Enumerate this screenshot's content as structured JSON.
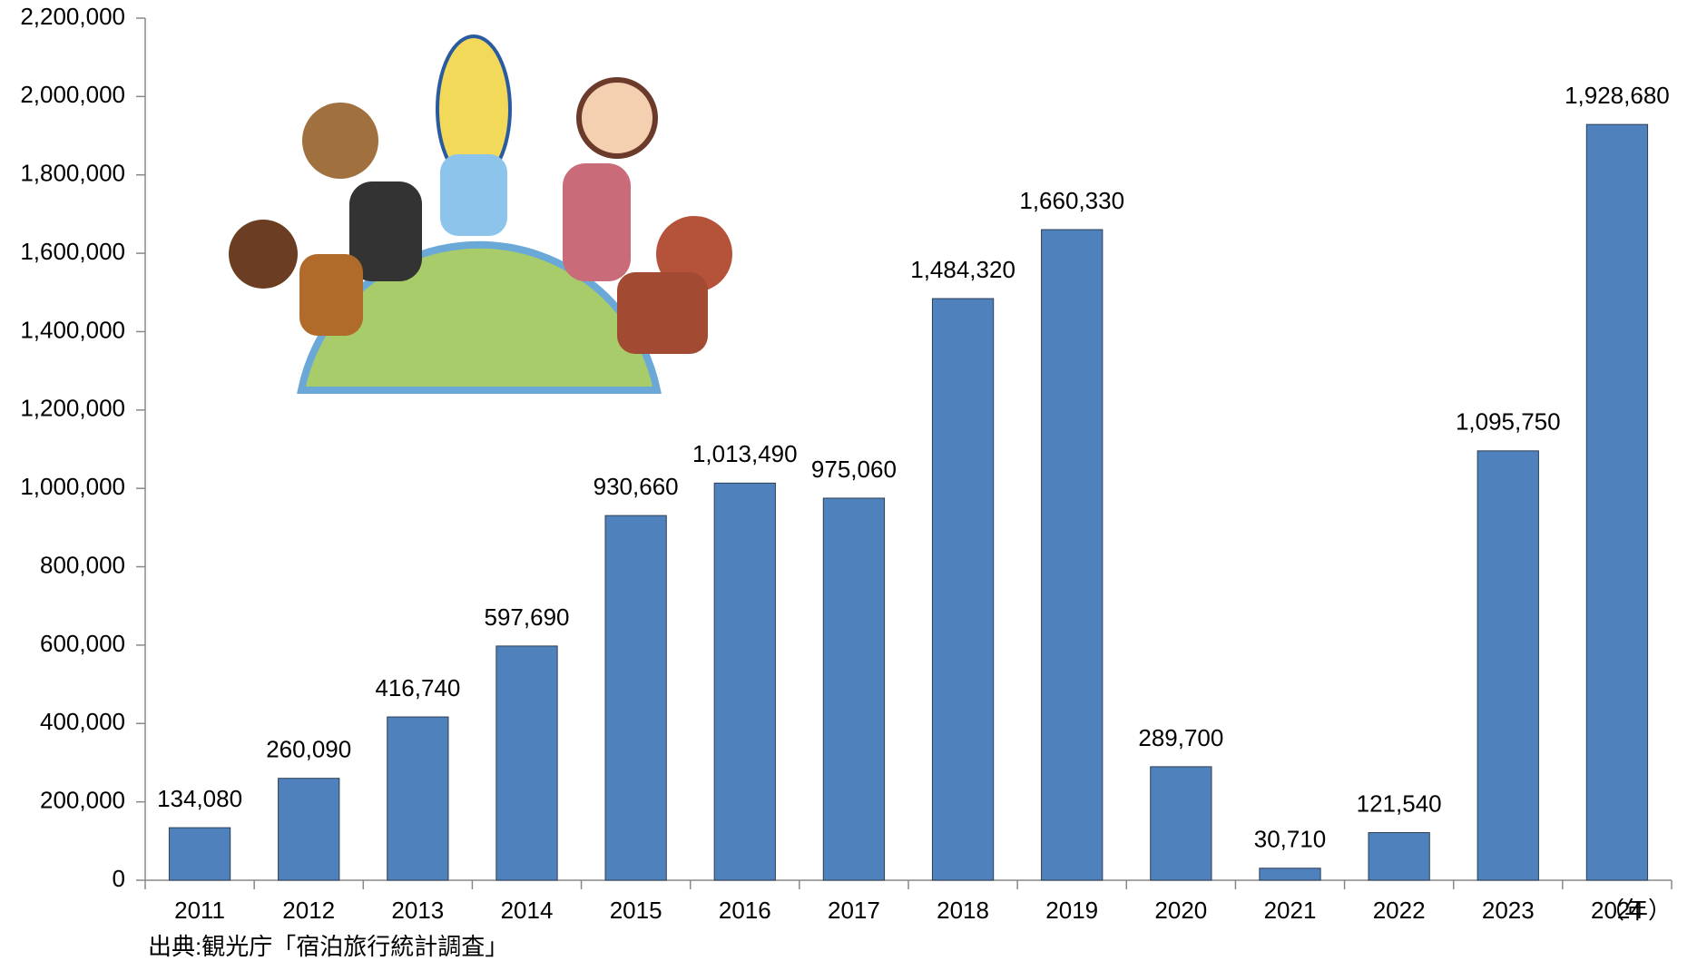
{
  "chart_data": {
    "type": "bar",
    "categories": [
      "2011",
      "2012",
      "2013",
      "2014",
      "2015",
      "2016",
      "2017",
      "2018",
      "2019",
      "2020",
      "2021",
      "2022",
      "2023",
      "2024"
    ],
    "values": [
      134080,
      260090,
      416740,
      597690,
      930660,
      1013490,
      975060,
      1484320,
      1660330,
      289700,
      30710,
      121540,
      1095750,
      1928680
    ],
    "value_labels": [
      "134,080",
      "260,090",
      "416,740",
      "597,690",
      "930,660",
      "1,013,490",
      "975,060",
      "1,484,320",
      "1,660,330",
      "289,700",
      "30,710",
      "121,540",
      "1,095,750",
      "1,928,680"
    ],
    "color": "#4f81bd",
    "ylim": [
      0,
      2200000
    ],
    "yticks": [
      0,
      {
        "value": 200000,
        "label": "200,000"
      },
      {
        "value": 400000,
        "label": "400,000"
      },
      {
        "value": 600000,
        "label": "600,000"
      },
      {
        "value": 800000,
        "label": "800,000"
      },
      {
        "value": 1000000,
        "label": "1,000,000"
      },
      {
        "value": 1200000,
        "label": "1,200,000"
      },
      {
        "value": 1400000,
        "label": "1,400,000"
      },
      {
        "value": 1600000,
        "label": "1,600,000"
      },
      {
        "value": 1800000,
        "label": "1,800,000"
      },
      {
        "value": 2000000,
        "label": "2,000,000"
      },
      {
        "value": 2200000,
        "label": "2,200,000"
      }
    ],
    "x_label": "（年）",
    "source": "出典:観光庁「宿泊旅行統計調査」"
  }
}
